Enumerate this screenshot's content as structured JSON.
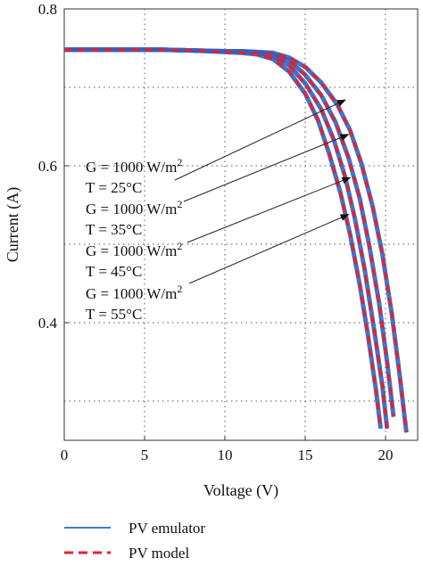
{
  "chart_data": {
    "type": "line",
    "xlabel": "Voltage (V)",
    "ylabel": "Current (A)",
    "xlim": [
      0,
      22
    ],
    "ylim": [
      0.25,
      0.8
    ],
    "x_ticks": [
      0,
      5,
      10,
      15,
      20
    ],
    "y_ticks": [
      0.4,
      0.6,
      0.8
    ],
    "y_grid": [
      0.3,
      0.4,
      0.5,
      0.6,
      0.7
    ],
    "grid": "dotted",
    "legend_position": "bottom-left",
    "legend": [
      {
        "label": "PV emulator",
        "style": "solid",
        "color": "#2a64c8"
      },
      {
        "label": "PV model",
        "style": "dashed",
        "color": "#e8202a"
      }
    ],
    "series": [
      {
        "temperature_label": "25",
        "x": [
          0,
          2,
          4,
          6,
          8,
          10,
          11,
          12,
          13,
          14,
          15,
          16,
          17,
          17.8,
          18.5,
          19.2,
          19.8,
          20.4,
          20.9,
          21.3
        ],
        "y": [
          0.748,
          0.748,
          0.748,
          0.748,
          0.747,
          0.746,
          0.746,
          0.745,
          0.744,
          0.738,
          0.726,
          0.706,
          0.678,
          0.645,
          0.603,
          0.548,
          0.488,
          0.41,
          0.33,
          0.26
        ]
      },
      {
        "temperature_label": "35",
        "x": [
          0,
          2,
          4,
          6,
          8,
          10,
          11,
          12,
          13,
          14,
          15,
          16,
          16.9,
          17.7,
          18.4,
          19.0,
          19.6,
          20.1,
          20.5
        ],
        "y": [
          0.748,
          0.748,
          0.748,
          0.748,
          0.747,
          0.746,
          0.746,
          0.745,
          0.742,
          0.734,
          0.716,
          0.69,
          0.655,
          0.61,
          0.558,
          0.497,
          0.425,
          0.35,
          0.28
        ]
      },
      {
        "temperature_label": "45",
        "x": [
          0,
          2,
          4,
          6,
          8,
          10,
          11,
          12,
          13,
          14,
          15,
          16,
          16.8,
          17.5,
          18.1,
          18.7,
          19.3,
          19.8,
          20.1
        ],
        "y": [
          0.748,
          0.748,
          0.748,
          0.748,
          0.747,
          0.746,
          0.745,
          0.744,
          0.74,
          0.728,
          0.705,
          0.672,
          0.632,
          0.585,
          0.532,
          0.468,
          0.39,
          0.32,
          0.265
        ]
      },
      {
        "temperature_label": "55",
        "x": [
          0,
          2,
          4,
          6,
          8,
          10,
          11,
          12,
          13,
          14,
          15,
          15.8,
          16.5,
          17.2,
          17.8,
          18.4,
          18.9,
          19.4,
          19.7
        ],
        "y": [
          0.748,
          0.748,
          0.748,
          0.748,
          0.747,
          0.745,
          0.744,
          0.742,
          0.736,
          0.72,
          0.692,
          0.658,
          0.615,
          0.565,
          0.512,
          0.448,
          0.385,
          0.315,
          0.265
        ]
      }
    ],
    "annotations": [
      {
        "g_line": "G = 1000 W/m",
        "g_sup": "2",
        "t_line": "T = 25°C",
        "target": [
          17.5,
          0.684
        ]
      },
      {
        "g_line": "G = 1000 W/m",
        "g_sup": "2",
        "t_line": "T = 35°C",
        "target": [
          17.7,
          0.64
        ]
      },
      {
        "g_line": "G = 1000 W/m",
        "g_sup": "2",
        "t_line": "T = 45°C",
        "target": [
          17.8,
          0.585
        ]
      },
      {
        "g_line": "G = 1000 W/m",
        "g_sup": "2",
        "t_line": "T = 55°C",
        "target": [
          17.7,
          0.538
        ]
      }
    ]
  }
}
